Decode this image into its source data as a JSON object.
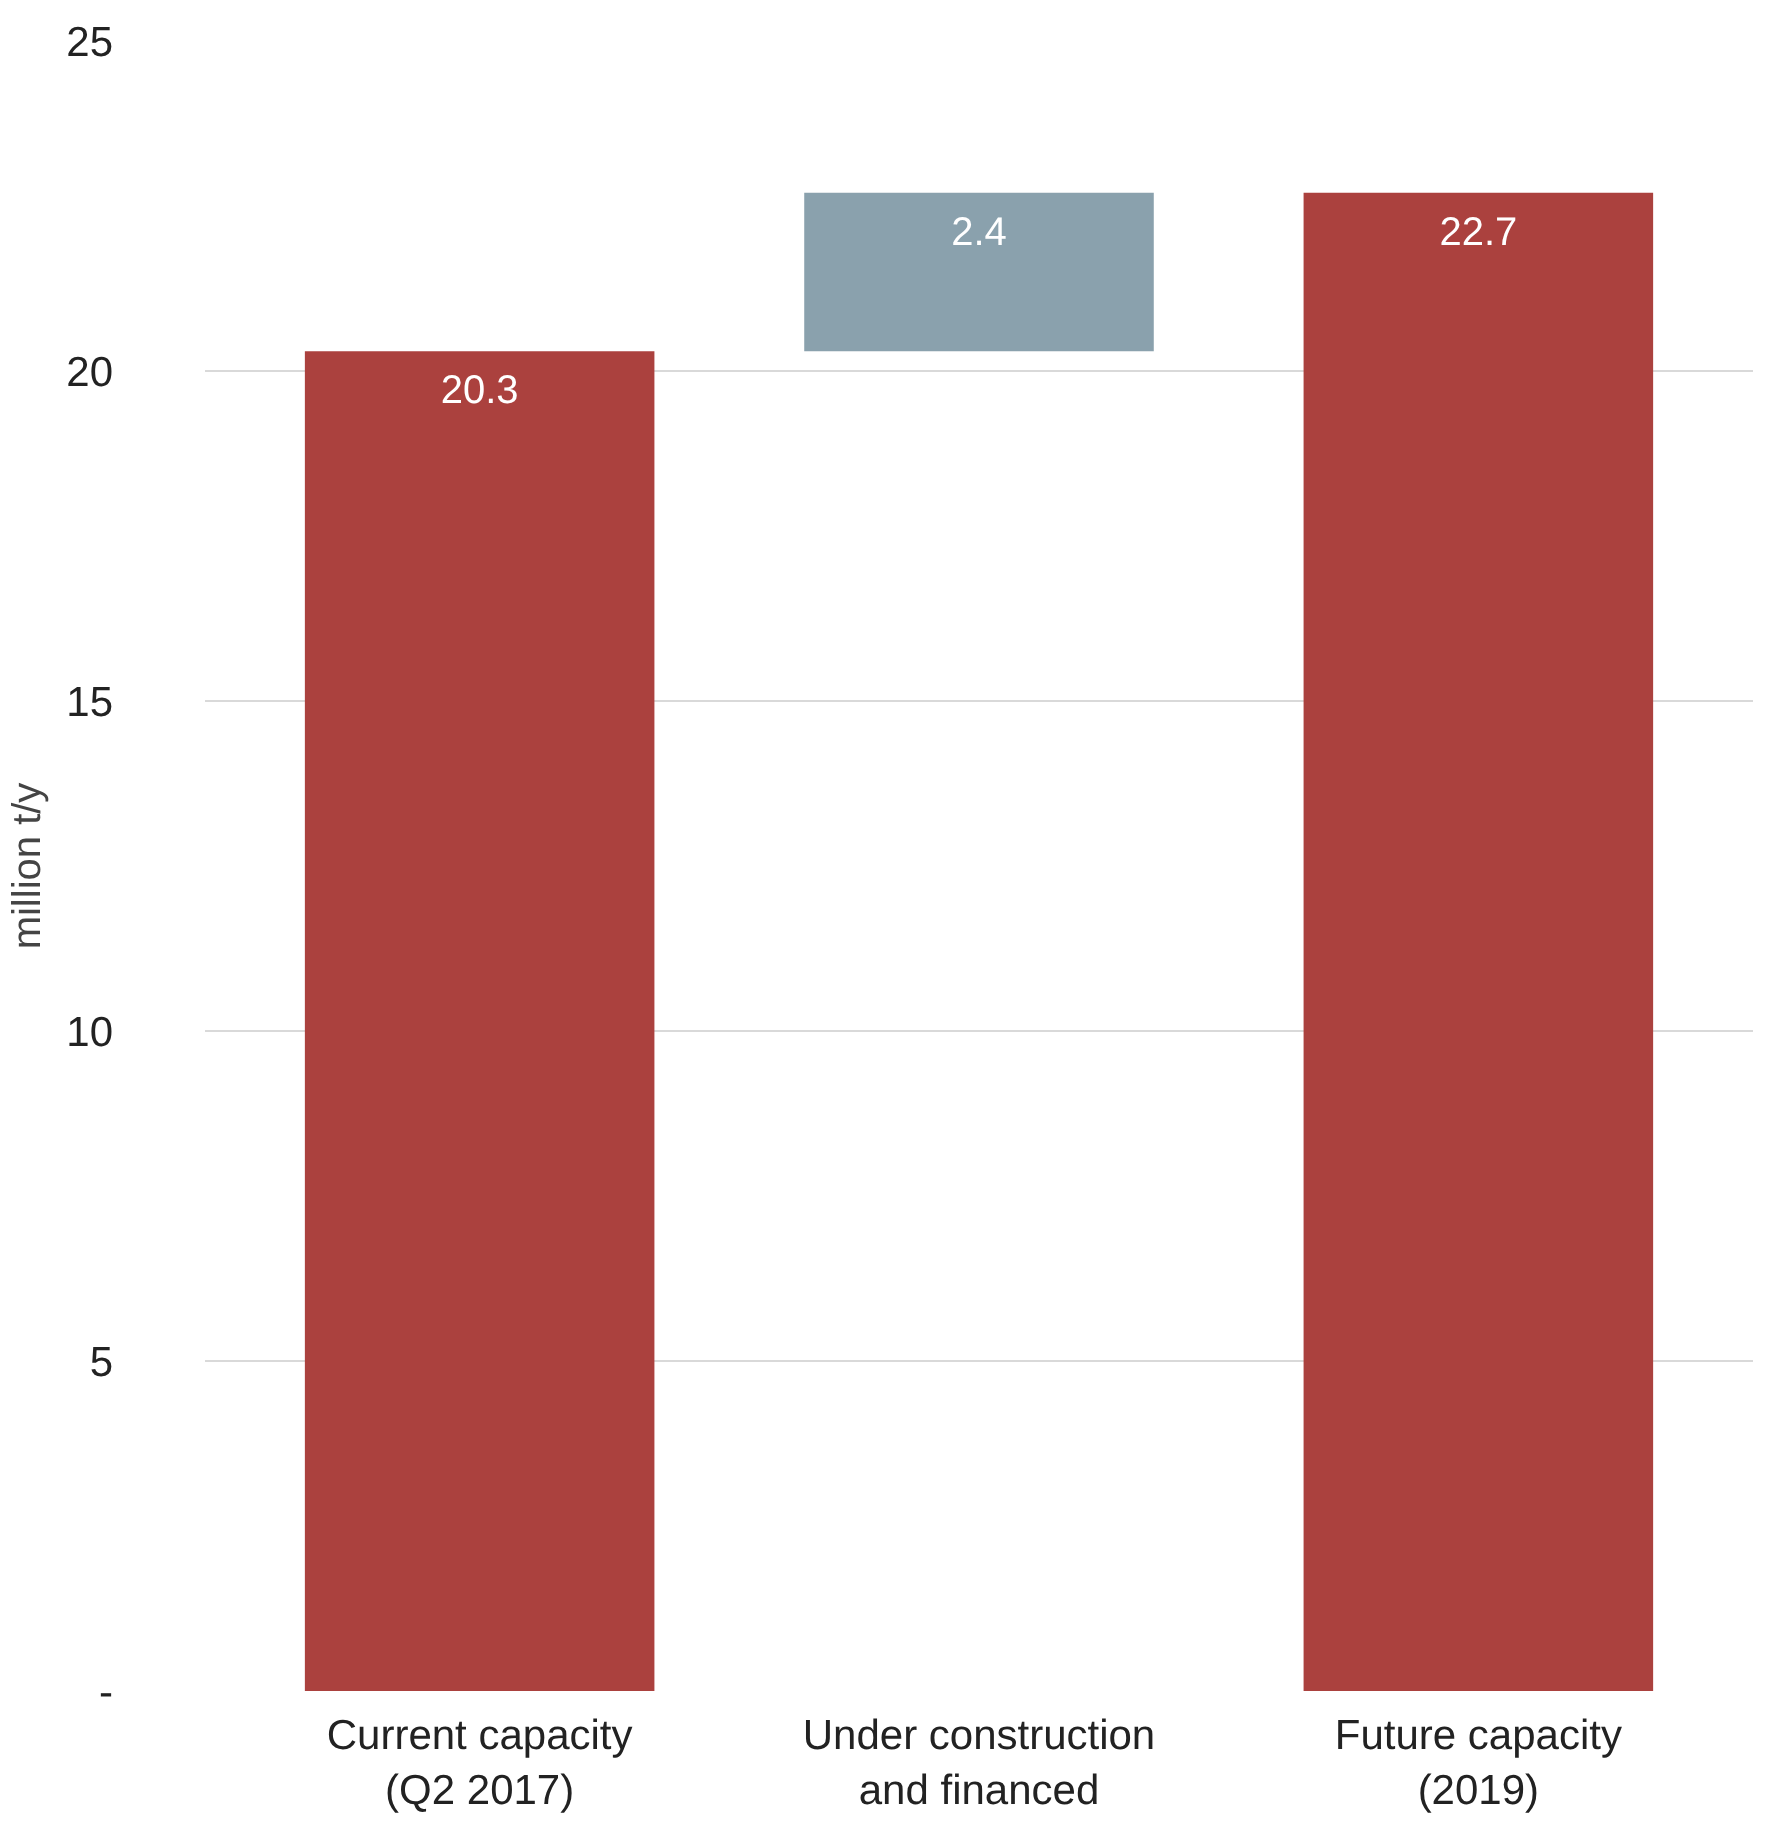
{
  "chart_data": {
    "type": "bar",
    "ylabel": "million t/y",
    "categories": [
      "Current capacity\n(Q2 2017)",
      "Under construction\nand financed",
      "Future capacity\n(2019)"
    ],
    "values": [
      20.3,
      2.4,
      22.7
    ],
    "base": [
      0,
      20.3,
      0
    ],
    "colors": [
      "#ab413e",
      "#8aa1ad",
      "#ab413e"
    ],
    "ylim": [
      0,
      25
    ],
    "yticks": [
      {
        "value": 0,
        "label": "-"
      },
      5,
      10,
      15,
      20,
      25
    ],
    "grid": "y",
    "data_labels": true
  }
}
